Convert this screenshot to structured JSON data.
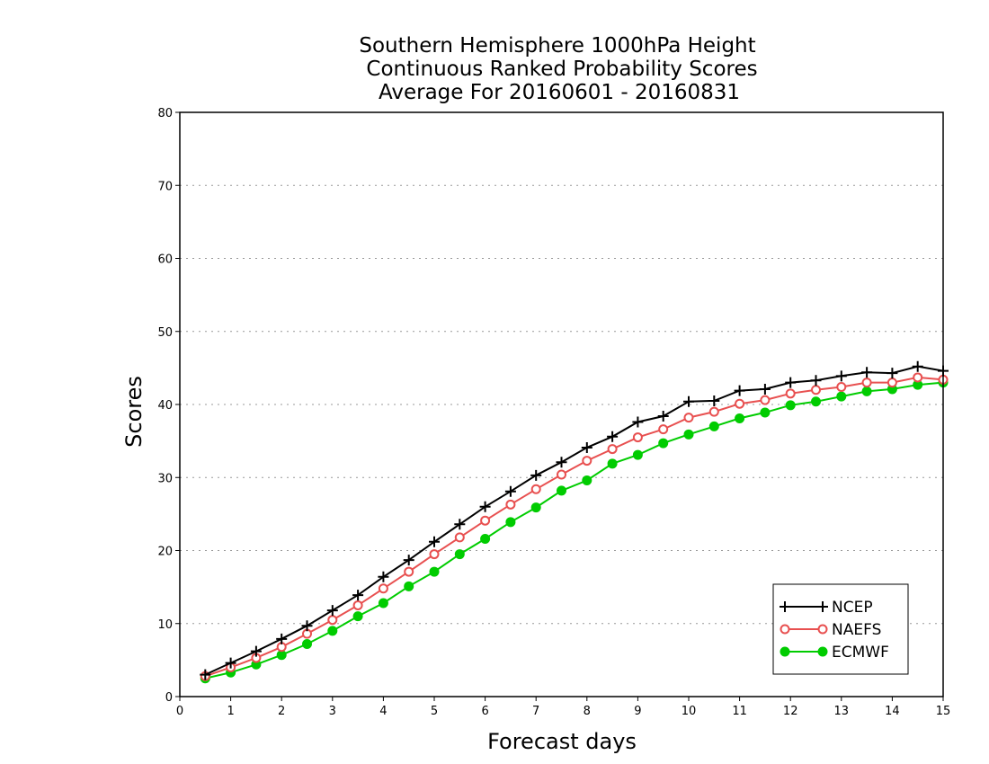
{
  "chart_data": {
    "type": "line",
    "title": [
      "Southern Hemisphere 1000hPa Height",
      "Continuous Ranked Probability Scores",
      "Average For 20160601 - 20160831"
    ],
    "xlabel": "Forecast days",
    "ylabel": "Scores",
    "xlim": [
      0,
      15
    ],
    "ylim": [
      0,
      80
    ],
    "x_ticks": [
      "0",
      "1",
      "2",
      "3",
      "4",
      "5",
      "6",
      "7",
      "8",
      "9",
      "10",
      "11",
      "12",
      "13",
      "14",
      "15"
    ],
    "y_ticks": [
      "0",
      "10",
      "20",
      "30",
      "40",
      "50",
      "60",
      "70",
      "80"
    ],
    "grid": "horizontal dotted",
    "legend_position": "bottom-right",
    "x": [
      0.5,
      1,
      1.5,
      2,
      2.5,
      3,
      3.5,
      4,
      4.5,
      5,
      5.5,
      6,
      6.5,
      7,
      7.5,
      8,
      8.5,
      9,
      9.5,
      10,
      10.5,
      11,
      11.5,
      12,
      12.5,
      13,
      13.5,
      14,
      14.5,
      15
    ],
    "series": [
      {
        "name": "NCEP",
        "color": "#000000",
        "marker": "plus",
        "values": [
          3.0,
          4.6,
          6.2,
          7.9,
          9.7,
          11.8,
          13.9,
          16.4,
          18.7,
          21.2,
          23.6,
          26.0,
          28.1,
          30.3,
          32.1,
          34.1,
          35.6,
          37.6,
          38.4,
          40.4,
          40.5,
          41.9,
          42.1,
          43.0,
          43.3,
          43.9,
          44.4,
          44.3,
          45.2,
          44.6
        ]
      },
      {
        "name": "NAEFS",
        "color": "#e85050",
        "marker": "open-circle",
        "values": [
          2.8,
          4.0,
          5.3,
          6.8,
          8.6,
          10.5,
          12.5,
          14.8,
          17.1,
          19.5,
          21.8,
          24.1,
          26.3,
          28.4,
          30.4,
          32.3,
          33.9,
          35.5,
          36.6,
          38.2,
          39.0,
          40.1,
          40.6,
          41.5,
          42.0,
          42.4,
          43.0,
          43.0,
          43.7,
          43.4
        ]
      },
      {
        "name": "ECMWF",
        "color": "#00cc00",
        "marker": "filled-circle",
        "values": [
          2.5,
          3.3,
          4.4,
          5.7,
          7.2,
          9.0,
          11.0,
          12.8,
          15.1,
          17.1,
          19.5,
          21.6,
          23.9,
          25.9,
          28.2,
          29.6,
          31.9,
          33.1,
          34.7,
          35.9,
          37.0,
          38.1,
          38.9,
          39.9,
          40.4,
          41.1,
          41.8,
          42.1,
          42.7,
          43.0
        ]
      }
    ]
  }
}
